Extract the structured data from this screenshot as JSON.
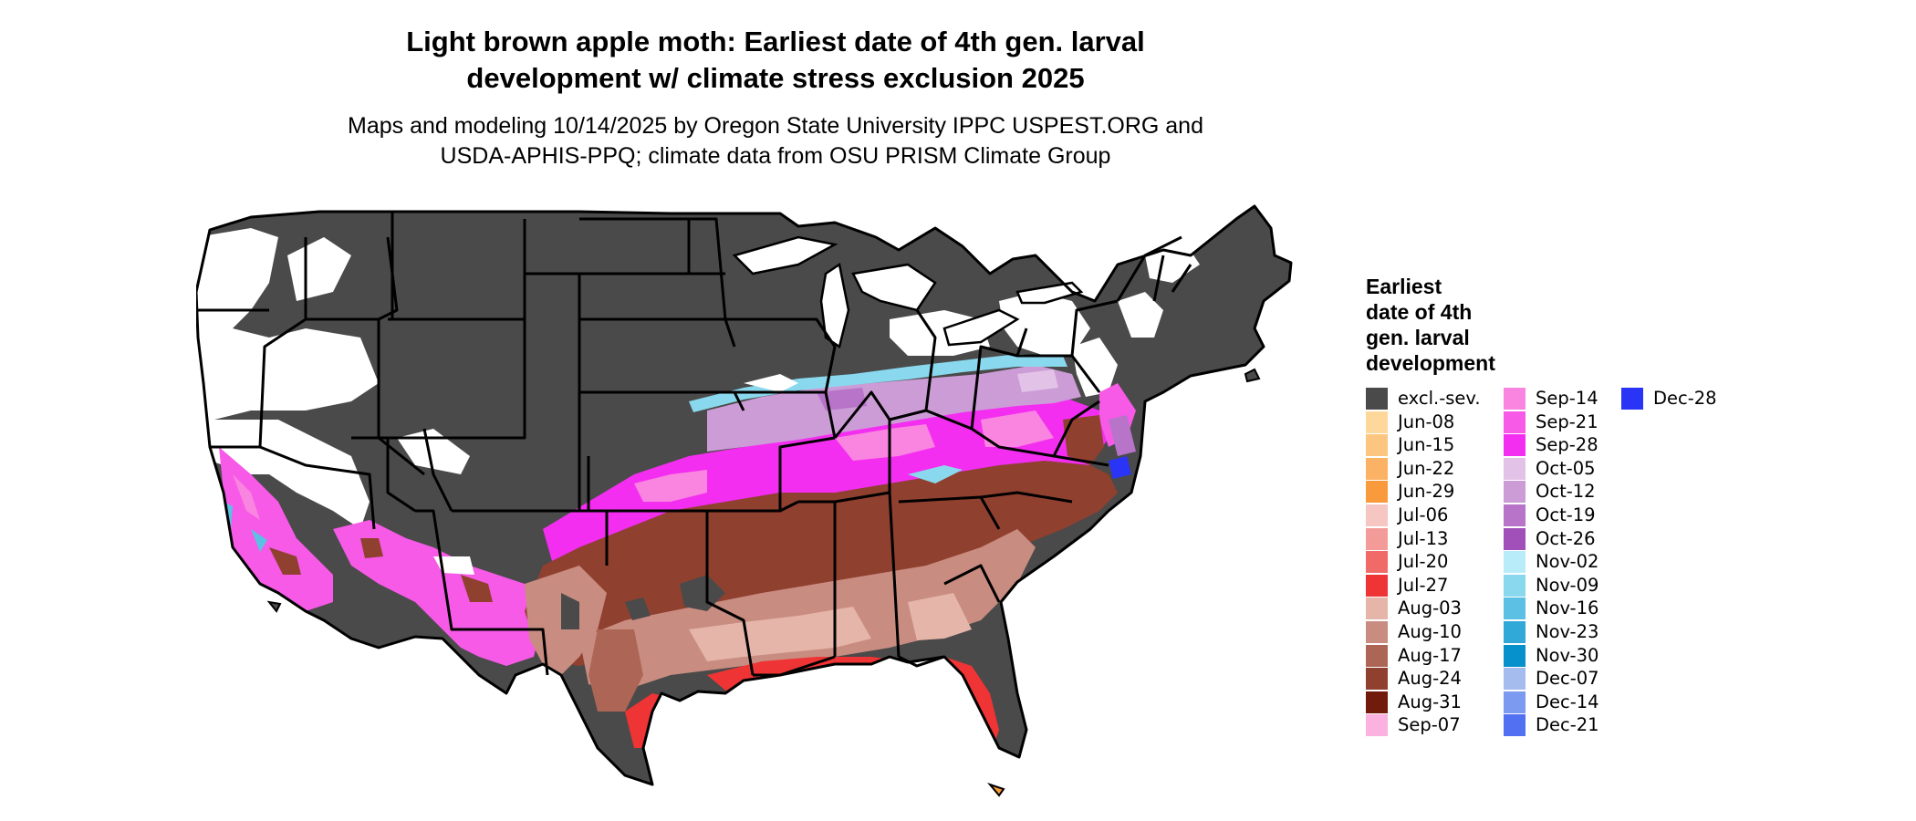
{
  "title": {
    "line1": "Light brown apple moth: Earliest date of 4th gen. larval",
    "line2": "development w/ climate stress exclusion 2025"
  },
  "subtitle": {
    "line1": "Maps and modeling 10/14/2025 by Oregon State University IPPC USPEST.ORG and",
    "line2": "USDA-APHIS-PPQ; climate data from OSU PRISM Climate Group"
  },
  "legend": {
    "title_lines": [
      "Earliest",
      "date of 4th",
      "gen. larval",
      "development"
    ],
    "items": [
      {
        "label": "excl.-sev.",
        "color": "#4a4a4a"
      },
      {
        "label": "Jun-08",
        "color": "#fdd89a"
      },
      {
        "label": "Jun-15",
        "color": "#fcc680"
      },
      {
        "label": "Jun-22",
        "color": "#fbb264"
      },
      {
        "label": "Jun-29",
        "color": "#f99a3c"
      },
      {
        "label": "Jul-06",
        "color": "#f6c6c2"
      },
      {
        "label": "Jul-13",
        "color": "#f39b98"
      },
      {
        "label": "Jul-20",
        "color": "#f06b68"
      },
      {
        "label": "Jul-27",
        "color": "#ee3434"
      },
      {
        "label": "Aug-03",
        "color": "#e5b5aa"
      },
      {
        "label": "Aug-10",
        "color": "#c98c80"
      },
      {
        "label": "Aug-17",
        "color": "#ad6555"
      },
      {
        "label": "Aug-24",
        "color": "#90402f"
      },
      {
        "label": "Aug-31",
        "color": "#701b0c"
      },
      {
        "label": "Sep-07",
        "color": "#fbb2e0"
      },
      {
        "label": "Sep-14",
        "color": "#f985e0"
      },
      {
        "label": "Sep-21",
        "color": "#f65ae6"
      },
      {
        "label": "Sep-28",
        "color": "#f42ef0"
      },
      {
        "label": "Oct-05",
        "color": "#e2c2e6"
      },
      {
        "label": "Oct-12",
        "color": "#cc9cd6"
      },
      {
        "label": "Oct-19",
        "color": "#b774c8"
      },
      {
        "label": "Oct-26",
        "color": "#a050b8"
      },
      {
        "label": "Nov-02",
        "color": "#b8ecf8"
      },
      {
        "label": "Nov-09",
        "color": "#8ad8ee"
      },
      {
        "label": "Nov-16",
        "color": "#5cc0e4"
      },
      {
        "label": "Nov-23",
        "color": "#30a8d8"
      },
      {
        "label": "Nov-30",
        "color": "#0690cc"
      },
      {
        "label": "Dec-07",
        "color": "#a4bcee"
      },
      {
        "label": "Dec-14",
        "color": "#7c9af0"
      },
      {
        "label": "Dec-21",
        "color": "#5270f2"
      },
      {
        "label": "Dec-28",
        "color": "#2a34f6"
      }
    ]
  },
  "map": {
    "region": "Contiguous United States",
    "year": "2025",
    "background_color": "#ffffff",
    "state_border_color": "#000000"
  }
}
